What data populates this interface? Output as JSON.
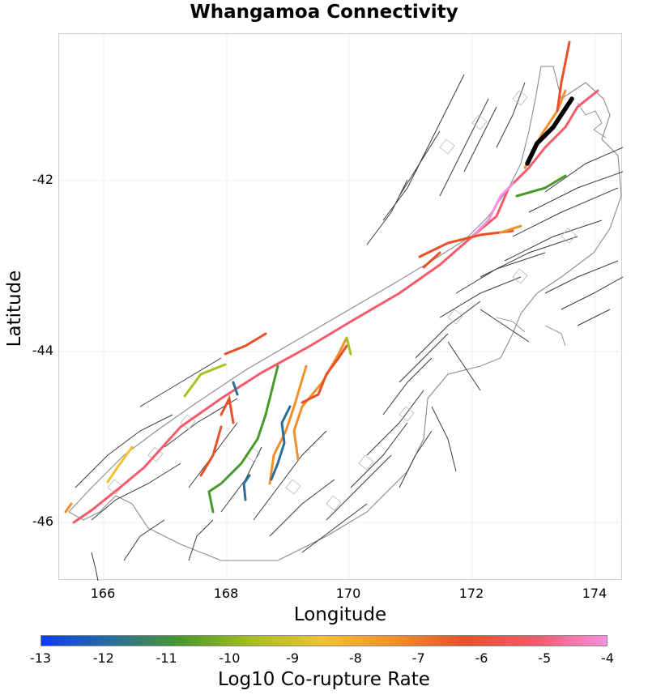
{
  "title": "Whangamoa Connectivity",
  "axes": {
    "xlabel": "Longitude",
    "ylabel": "Latitude",
    "xticks": [
      "166",
      "168",
      "170",
      "172",
      "174"
    ],
    "yticks": [
      "-42",
      "-44",
      "-46"
    ]
  },
  "colorbar": {
    "title": "Log10 Co-rupture Rate",
    "ticks": [
      "-13",
      "-12",
      "-11",
      "-10",
      "-9",
      "-8",
      "-7",
      "-6",
      "-5",
      "-4"
    ],
    "colors": [
      "#0a3cf5",
      "#2a6e9a",
      "#4a9a2a",
      "#a8c020",
      "#f2c230",
      "#f2902a",
      "#e8502a",
      "#f45a6a",
      "#f890e0"
    ]
  },
  "colors": {
    "background_faults": "#3a3a3a",
    "grid": "#e6e6e6",
    "coast": "#808080",
    "source_fault": "#000000"
  }
}
